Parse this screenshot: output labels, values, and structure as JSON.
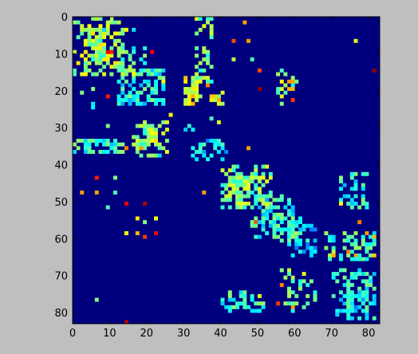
{
  "chart_data": {
    "type": "heatmap",
    "rows": 83,
    "cols": 83,
    "xlim": [
      0,
      83
    ],
    "ylim": [
      83,
      0
    ],
    "x_ticks": [
      "0",
      "10",
      "20",
      "30",
      "40",
      "50",
      "60",
      "70",
      "80"
    ],
    "y_ticks": [
      "0",
      "10",
      "20",
      "30",
      "40",
      "50",
      "60",
      "70",
      "80"
    ],
    "title": "",
    "xlabel": "",
    "ylabel": "",
    "grid": false,
    "colormap": "jet",
    "background_color": "#00007f",
    "value_range": [
      0,
      1
    ],
    "regions": [
      {
        "r": [
          0,
          16
        ],
        "c": [
          0,
          14
        ],
        "level": 0.55,
        "density": 0.45
      },
      {
        "r": [
          3,
          12
        ],
        "c": [
          4,
          9
        ],
        "level": 0.45,
        "density": 0.55
      },
      {
        "r": [
          8,
          16
        ],
        "c": [
          12,
          20
        ],
        "level": 0.45,
        "density": 0.3
      },
      {
        "r": [
          14,
          24
        ],
        "c": [
          12,
          25
        ],
        "level": 0.4,
        "density": 0.45
      },
      {
        "r": [
          16,
          25
        ],
        "c": [
          0,
          6
        ],
        "level": 0.45,
        "density": 0.1
      },
      {
        "r": [
          0,
          18
        ],
        "c": [
          33,
          38
        ],
        "level": 0.5,
        "density": 0.4
      },
      {
        "r": [
          16,
          24
        ],
        "c": [
          30,
          35
        ],
        "level": 0.6,
        "density": 0.6
      },
      {
        "r": [
          20,
          25
        ],
        "c": [
          36,
          41
        ],
        "level": 0.6,
        "density": 0.3
      },
      {
        "r": [
          28,
          38
        ],
        "c": [
          16,
          26
        ],
        "level": 0.5,
        "density": 0.45
      },
      {
        "r": [
          30,
          34
        ],
        "c": [
          20,
          23
        ],
        "level": 0.55,
        "density": 0.9
      },
      {
        "r": [
          33,
          37
        ],
        "c": [
          0,
          14
        ],
        "level": 0.42,
        "density": 0.6
      },
      {
        "r": [
          33,
          39
        ],
        "c": [
          32,
          42
        ],
        "level": 0.35,
        "density": 0.4
      },
      {
        "r": [
          28,
          32
        ],
        "c": [
          28,
          33
        ],
        "level": 0.35,
        "density": 0.35
      },
      {
        "r": [
          40,
          52
        ],
        "c": [
          40,
          54
        ],
        "level": 0.5,
        "density": 0.5
      },
      {
        "r": [
          43,
          48
        ],
        "c": [
          42,
          49
        ],
        "level": 0.5,
        "density": 0.55
      },
      {
        "r": [
          48,
          60
        ],
        "c": [
          48,
          60
        ],
        "level": 0.4,
        "density": 0.4
      },
      {
        "r": [
          53,
          61
        ],
        "c": [
          54,
          62
        ],
        "level": 0.45,
        "density": 0.45
      },
      {
        "r": [
          56,
          65
        ],
        "c": [
          58,
          66
        ],
        "level": 0.35,
        "density": 0.5
      },
      {
        "r": [
          58,
          66
        ],
        "c": [
          68,
          82
        ],
        "level": 0.45,
        "density": 0.4
      },
      {
        "r": [
          41,
          52
        ],
        "c": [
          72,
          80
        ],
        "level": 0.4,
        "density": 0.35
      },
      {
        "r": [
          68,
          82
        ],
        "c": [
          70,
          82
        ],
        "level": 0.4,
        "density": 0.35
      },
      {
        "r": [
          74,
          80
        ],
        "c": [
          74,
          80
        ],
        "level": 0.35,
        "density": 0.55
      },
      {
        "r": [
          68,
          80
        ],
        "c": [
          56,
          66
        ],
        "level": 0.5,
        "density": 0.3
      },
      {
        "r": [
          74,
          80
        ],
        "c": [
          40,
          52
        ],
        "level": 0.42,
        "density": 0.35
      },
      {
        "r": [
          14,
          22
        ],
        "c": [
          55,
          61
        ],
        "level": 0.5,
        "density": 0.2
      }
    ],
    "points": [
      [
        2,
        7,
        0.62
      ],
      [
        2,
        9,
        0.6
      ],
      [
        3,
        16,
        0.35
      ],
      [
        3,
        14,
        0.62
      ],
      [
        1,
        46,
        0.72
      ],
      [
        6,
        43,
        0.8
      ],
      [
        6,
        47,
        0.72
      ],
      [
        6,
        76,
        0.6
      ],
      [
        9,
        10,
        0.85
      ],
      [
        9,
        9,
        0.9
      ],
      [
        9,
        21,
        0.88
      ],
      [
        11,
        43,
        0.55
      ],
      [
        11,
        48,
        0.45
      ],
      [
        15,
        16,
        0.62
      ],
      [
        14,
        50,
        0.8
      ],
      [
        14,
        81,
        0.98
      ],
      [
        17,
        56,
        0.62
      ],
      [
        17,
        58,
        0.72
      ],
      [
        17,
        59,
        0.72
      ],
      [
        19,
        50,
        0.98
      ],
      [
        19,
        56,
        0.6
      ],
      [
        19,
        58,
        0.7
      ],
      [
        19,
        59,
        0.7
      ],
      [
        21,
        9,
        0.85
      ],
      [
        22,
        59,
        0.82
      ],
      [
        23,
        56,
        0.5
      ],
      [
        17,
        24,
        0.62
      ],
      [
        18,
        36,
        0.75
      ],
      [
        26,
        26,
        0.62
      ],
      [
        28,
        39,
        0.6
      ],
      [
        27,
        37,
        0.45
      ],
      [
        29,
        9,
        0.5
      ],
      [
        35,
        18,
        0.72
      ],
      [
        35,
        14,
        0.75
      ],
      [
        35,
        47,
        0.72
      ],
      [
        37,
        23,
        0.35
      ],
      [
        43,
        6,
        0.85
      ],
      [
        43,
        11,
        0.5
      ],
      [
        47,
        2,
        0.72
      ],
      [
        47,
        6,
        0.72
      ],
      [
        47,
        11,
        0.45
      ],
      [
        50,
        14,
        0.88
      ],
      [
        50,
        19,
        0.95
      ],
      [
        51,
        9,
        0.45
      ],
      [
        47,
        35,
        0.72
      ],
      [
        50,
        72,
        0.62
      ],
      [
        54,
        17,
        0.65
      ],
      [
        54,
        22,
        0.62
      ],
      [
        55,
        19,
        0.5
      ],
      [
        55,
        49,
        0.8
      ],
      [
        55,
        77,
        0.75
      ],
      [
        58,
        14,
        0.62
      ],
      [
        58,
        17,
        0.7
      ],
      [
        58,
        22,
        0.88
      ],
      [
        59,
        19,
        0.82
      ],
      [
        58,
        79,
        0.72
      ],
      [
        59,
        81,
        0.7
      ],
      [
        64,
        70,
        0.7
      ],
      [
        63,
        74,
        0.75
      ],
      [
        64,
        76,
        0.72
      ],
      [
        64,
        81,
        0.68
      ],
      [
        76,
        6,
        0.5
      ],
      [
        77,
        55,
        0.82
      ],
      [
        78,
        59,
        0.72
      ],
      [
        82,
        14,
        0.95
      ],
      [
        75,
        50,
        0.6
      ],
      [
        72,
        56,
        0.75
      ]
    ]
  }
}
